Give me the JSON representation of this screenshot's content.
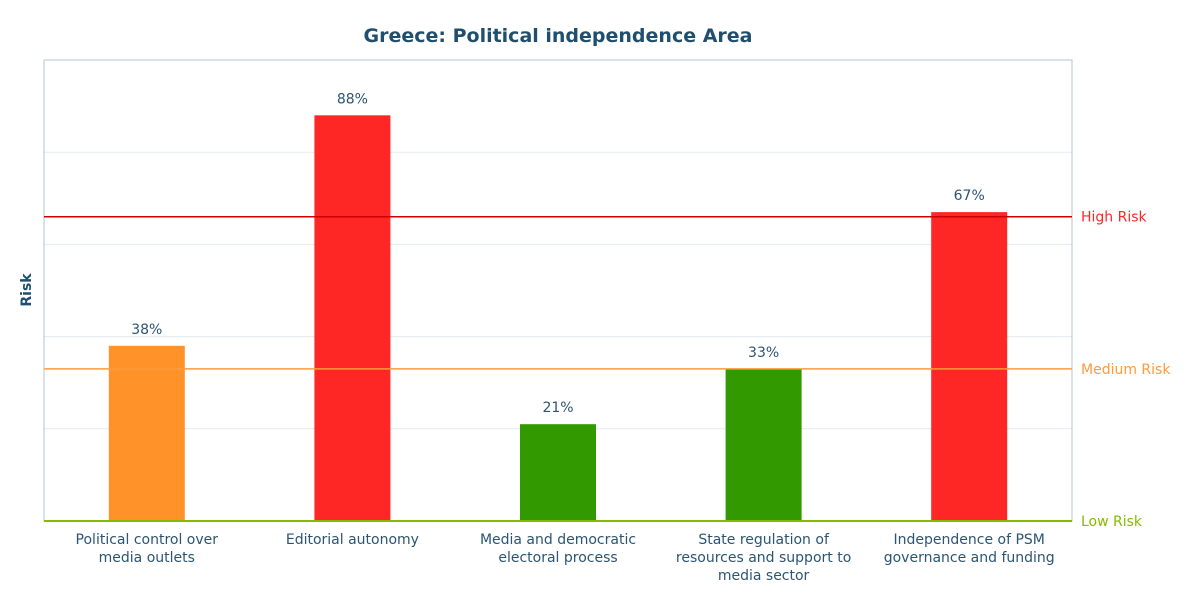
{
  "chart_data": {
    "type": "bar",
    "title": "Greece: Political independence Area",
    "ylabel": "Risk",
    "ylim": [
      0,
      100
    ],
    "grid": true,
    "categories": [
      [
        "Political control over",
        "media outlets"
      ],
      [
        "Editorial autonomy"
      ],
      [
        "Media and democratic",
        "electoral process"
      ],
      [
        "State regulation of",
        "resources and support to",
        "media sector"
      ],
      [
        "Independence of PSM",
        "governance and funding"
      ]
    ],
    "values": [
      38,
      88,
      21,
      33,
      67
    ],
    "value_labels": [
      "38%",
      "88%",
      "21%",
      "33%",
      "67%"
    ],
    "bar_colors": [
      "#ff9228",
      "#ff2626",
      "#339900",
      "#339900",
      "#ff2626"
    ],
    "thresholds": [
      {
        "label": "High Risk",
        "value": 66,
        "color": "#cc0000",
        "text_color": "#ff2626"
      },
      {
        "label": "Medium Risk",
        "value": 33,
        "color": "#ff9a3c",
        "text_color": "#ff9a3c"
      },
      {
        "label": "Low Risk",
        "value": 0,
        "color": "#88bb00",
        "text_color": "#88bb00"
      }
    ]
  }
}
